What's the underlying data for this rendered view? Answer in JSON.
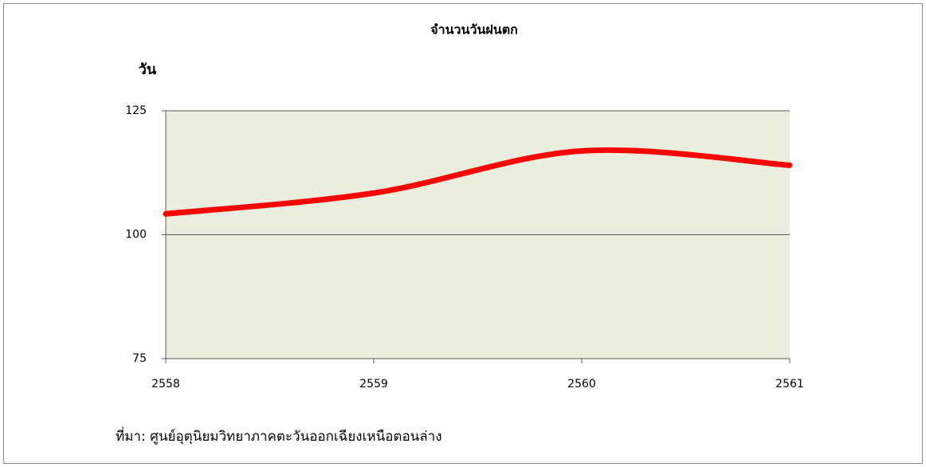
{
  "chart_data": {
    "type": "line",
    "title": "จำนวนวันฝนตก",
    "y_label": "วัน",
    "x": [
      2558,
      2559,
      2560,
      2561
    ],
    "values": [
      104.2,
      108.4,
      116.9,
      114.0
    ],
    "color": "#ff0000",
    "xlim": [
      2558,
      2561
    ],
    "xticks": [
      2558,
      2559,
      2560,
      2561
    ],
    "ylim": [
      75,
      125
    ],
    "yticks": [
      75,
      100,
      125
    ],
    "grid": true,
    "smooth": true,
    "plot_background": "#ebeedf",
    "source_note": "ที่มา: ศูนย์อุตุนิยมวิทยาภาคตะวันออกเฉียงเหนือตอนล่าง"
  }
}
